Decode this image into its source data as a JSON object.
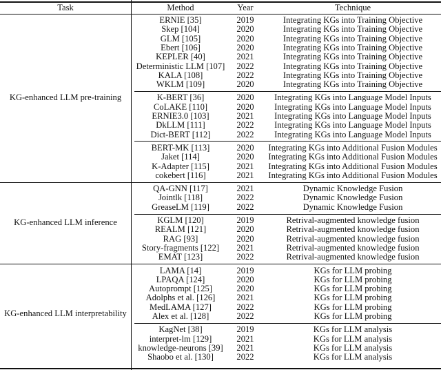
{
  "header": {
    "task": "Task",
    "method": "Method",
    "year": "Year",
    "technique": "Technique"
  },
  "groups": [
    {
      "task": "KG-enhanced LLM pre-training",
      "subgroups": [
        {
          "rows": [
            {
              "method": "ERNIE [35]",
              "year": "2019",
              "technique": "Integrating KGs into Training Objective"
            },
            {
              "method": "Skep [104]",
              "year": "2020",
              "technique": "Integrating KGs into Training Objective"
            },
            {
              "method": "GLM [105]",
              "year": "2020",
              "technique": "Integrating KGs into Training Objective"
            },
            {
              "method": "Ebert [106]",
              "year": "2020",
              "technique": "Integrating KGs into Training Objective"
            },
            {
              "method": "KEPLER [40]",
              "year": "2021",
              "technique": "Integrating KGs into Training Objective"
            },
            {
              "method": "Deterministic LLM [107]",
              "year": "2022",
              "technique": "Integrating KGs into Training Objective"
            },
            {
              "method": "KALA [108]",
              "year": "2022",
              "technique": "Integrating KGs into Training Objective"
            },
            {
              "method": "WKLM [109]",
              "year": "2020",
              "technique": "Integrating KGs into Training Objective"
            }
          ]
        },
        {
          "rows": [
            {
              "method": "K-BERT [36]",
              "year": "2020",
              "technique": "Integrating KGs into Language Model Inputs"
            },
            {
              "method": "CoLAKE [110]",
              "year": "2020",
              "technique": "Integrating KGs into Language Model Inputs"
            },
            {
              "method": "ERNIE3.0 [103]",
              "year": "2021",
              "technique": "Integrating KGs into Language Model Inputs"
            },
            {
              "method": "DkLLM [111]",
              "year": "2022",
              "technique": "Integrating KGs into Language Model Inputs"
            },
            {
              "method": "Dict-BERT [112]",
              "year": "2022",
              "technique": "Integrating KGs into Language Model Inputs"
            }
          ]
        },
        {
          "rows": [
            {
              "method": "BERT-MK [113]",
              "year": "2020",
              "technique": "Integrating KGs into Additional Fusion Modules"
            },
            {
              "method": "Jaket [114]",
              "year": "2020",
              "technique": "Integrating KGs into Additional Fusion Modules"
            },
            {
              "method": "K-Adapter [115]",
              "year": "2021",
              "technique": "Integrating KGs into Additional Fusion Modules"
            },
            {
              "method": "cokebert [116]",
              "year": "2021",
              "technique": "Integrating KGs into Additional Fusion Modules"
            }
          ]
        }
      ]
    },
    {
      "task": "KG-enhanced LLM inference",
      "subgroups": [
        {
          "rows": [
            {
              "method": "QA-GNN [117]",
              "year": "2021",
              "technique": "Dynamic Knowledge Fusion"
            },
            {
              "method": "Jointlk [118]",
              "year": "2022",
              "technique": "Dynamic Knowledge Fusion"
            },
            {
              "method": "GreaseLM [119]",
              "year": "2022",
              "technique": "Dynamic Knowledge Fusion"
            }
          ]
        },
        {
          "rows": [
            {
              "method": "KGLM [120]",
              "year": "2019",
              "technique": "Retrival-augmented knowledge fusion"
            },
            {
              "method": "REALM [121]",
              "year": "2020",
              "technique": "Retrival-augmented knowledge fusion"
            },
            {
              "method": "RAG [93]",
              "year": "2020",
              "technique": "Retrival-augmented knowledge fusion"
            },
            {
              "method": "Story-fragments [122]",
              "year": "2021",
              "technique": "Retrival-augmented knowledge fusion"
            },
            {
              "method": "EMAT [123]",
              "year": "2022",
              "technique": "Retrival-augmented knowledge fusion"
            }
          ]
        }
      ]
    },
    {
      "task": "KG-enhanced LLM interpretability",
      "subgroups": [
        {
          "rows": [
            {
              "method": "LAMA [14]",
              "year": "2019",
              "technique": "KGs for LLM probing"
            },
            {
              "method": "LPAQA [124]",
              "year": "2020",
              "technique": "KGs for LLM probing"
            },
            {
              "method": "Autoprompt [125]",
              "year": "2020",
              "technique": "KGs for LLM probing"
            },
            {
              "method": "Adolphs et al. [126]",
              "year": "2021",
              "technique": "KGs for LLM probing"
            },
            {
              "method": "MedLAMA [127]",
              "year": "2022",
              "technique": "KGs for LLM probing"
            },
            {
              "method": "Alex et al. [128]",
              "year": "2022",
              "technique": "KGs for LLM probing"
            }
          ]
        },
        {
          "rows": [
            {
              "method": "KagNet [38]",
              "year": "2019",
              "technique": "KGs for LLM analysis"
            },
            {
              "method": "interpret-lm [129]",
              "year": "2021",
              "technique": "KGs for LLM analysis"
            },
            {
              "method": "knowledge-neurons [39]",
              "year": "2021",
              "technique": "KGs for LLM analysis"
            },
            {
              "method": "Shaobo et al. [130]",
              "year": "2022",
              "technique": "KGs for LLM analysis"
            }
          ]
        }
      ]
    }
  ]
}
